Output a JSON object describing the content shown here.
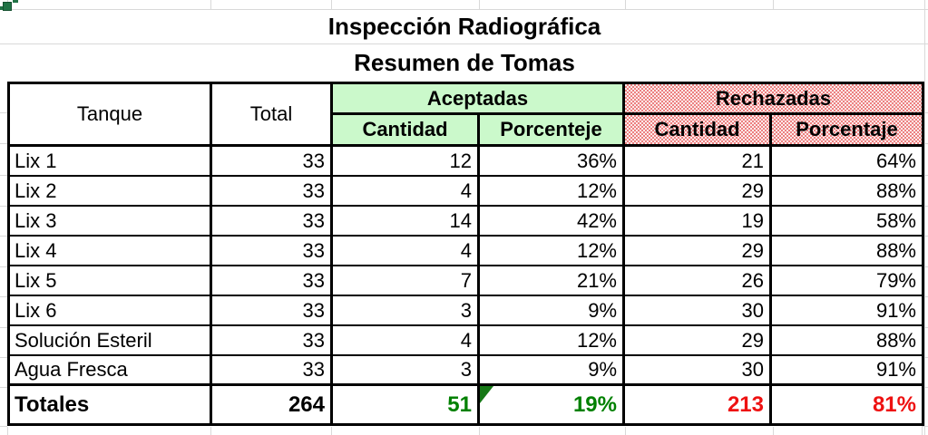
{
  "titles": {
    "line1": "Inspección Radiográfica",
    "line2": "Resumen de Tomas"
  },
  "table": {
    "headers": {
      "tanque": "Tanque",
      "total": "Total",
      "aceptadas": "Aceptadas",
      "rechazadas": "Rechazadas",
      "aceptadas_cantidad": "Cantidad",
      "aceptadas_porcentaje": "Porcenteje",
      "rechazadas_cantidad": "Cantidad",
      "rechazadas_porcentaje": "Porcentaje"
    },
    "rows": [
      {
        "tanque": "Lix 1",
        "total": "33",
        "acc_cant": "12",
        "acc_pct": "36%",
        "rej_cant": "21",
        "rej_pct": "64%"
      },
      {
        "tanque": "Lix 2",
        "total": "33",
        "acc_cant": "4",
        "acc_pct": "12%",
        "rej_cant": "29",
        "rej_pct": "88%"
      },
      {
        "tanque": "Lix 3",
        "total": "33",
        "acc_cant": "14",
        "acc_pct": "42%",
        "rej_cant": "19",
        "rej_pct": "58%"
      },
      {
        "tanque": "Lix 4",
        "total": "33",
        "acc_cant": "4",
        "acc_pct": "12%",
        "rej_cant": "29",
        "rej_pct": "88%"
      },
      {
        "tanque": "Lix 5",
        "total": "33",
        "acc_cant": "7",
        "acc_pct": "21%",
        "rej_cant": "26",
        "rej_pct": "79%"
      },
      {
        "tanque": "Lix 6",
        "total": "33",
        "acc_cant": "3",
        "acc_pct": "9%",
        "rej_cant": "30",
        "rej_pct": "91%"
      },
      {
        "tanque": "Solución Esteril",
        "total": "33",
        "acc_cant": "4",
        "acc_pct": "12%",
        "rej_cant": "29",
        "rej_pct": "88%"
      },
      {
        "tanque": "Agua Fresca",
        "total": "33",
        "acc_cant": "3",
        "acc_pct": "9%",
        "rej_cant": "30",
        "rej_pct": "91%"
      }
    ],
    "totals": {
      "label": "Totales",
      "total": "264",
      "acc_cant": "51",
      "acc_pct": "19%",
      "rej_cant": "213",
      "rej_pct": "81%"
    }
  },
  "colors": {
    "accepted_fill": "#cbf9cb",
    "rejected_pattern_red": "#ec8080",
    "rejected_pattern_bg": "#fceaea",
    "totals_accepted_text": "#008000",
    "totals_rejected_text": "#ee1111",
    "comment_triangle": "#167816",
    "selection_green": "#217346",
    "gridline": "#d9d9d9"
  },
  "icons": {
    "selection_handle": "excel-selection-handle",
    "comment_flag": "cell-flag-triangle"
  }
}
